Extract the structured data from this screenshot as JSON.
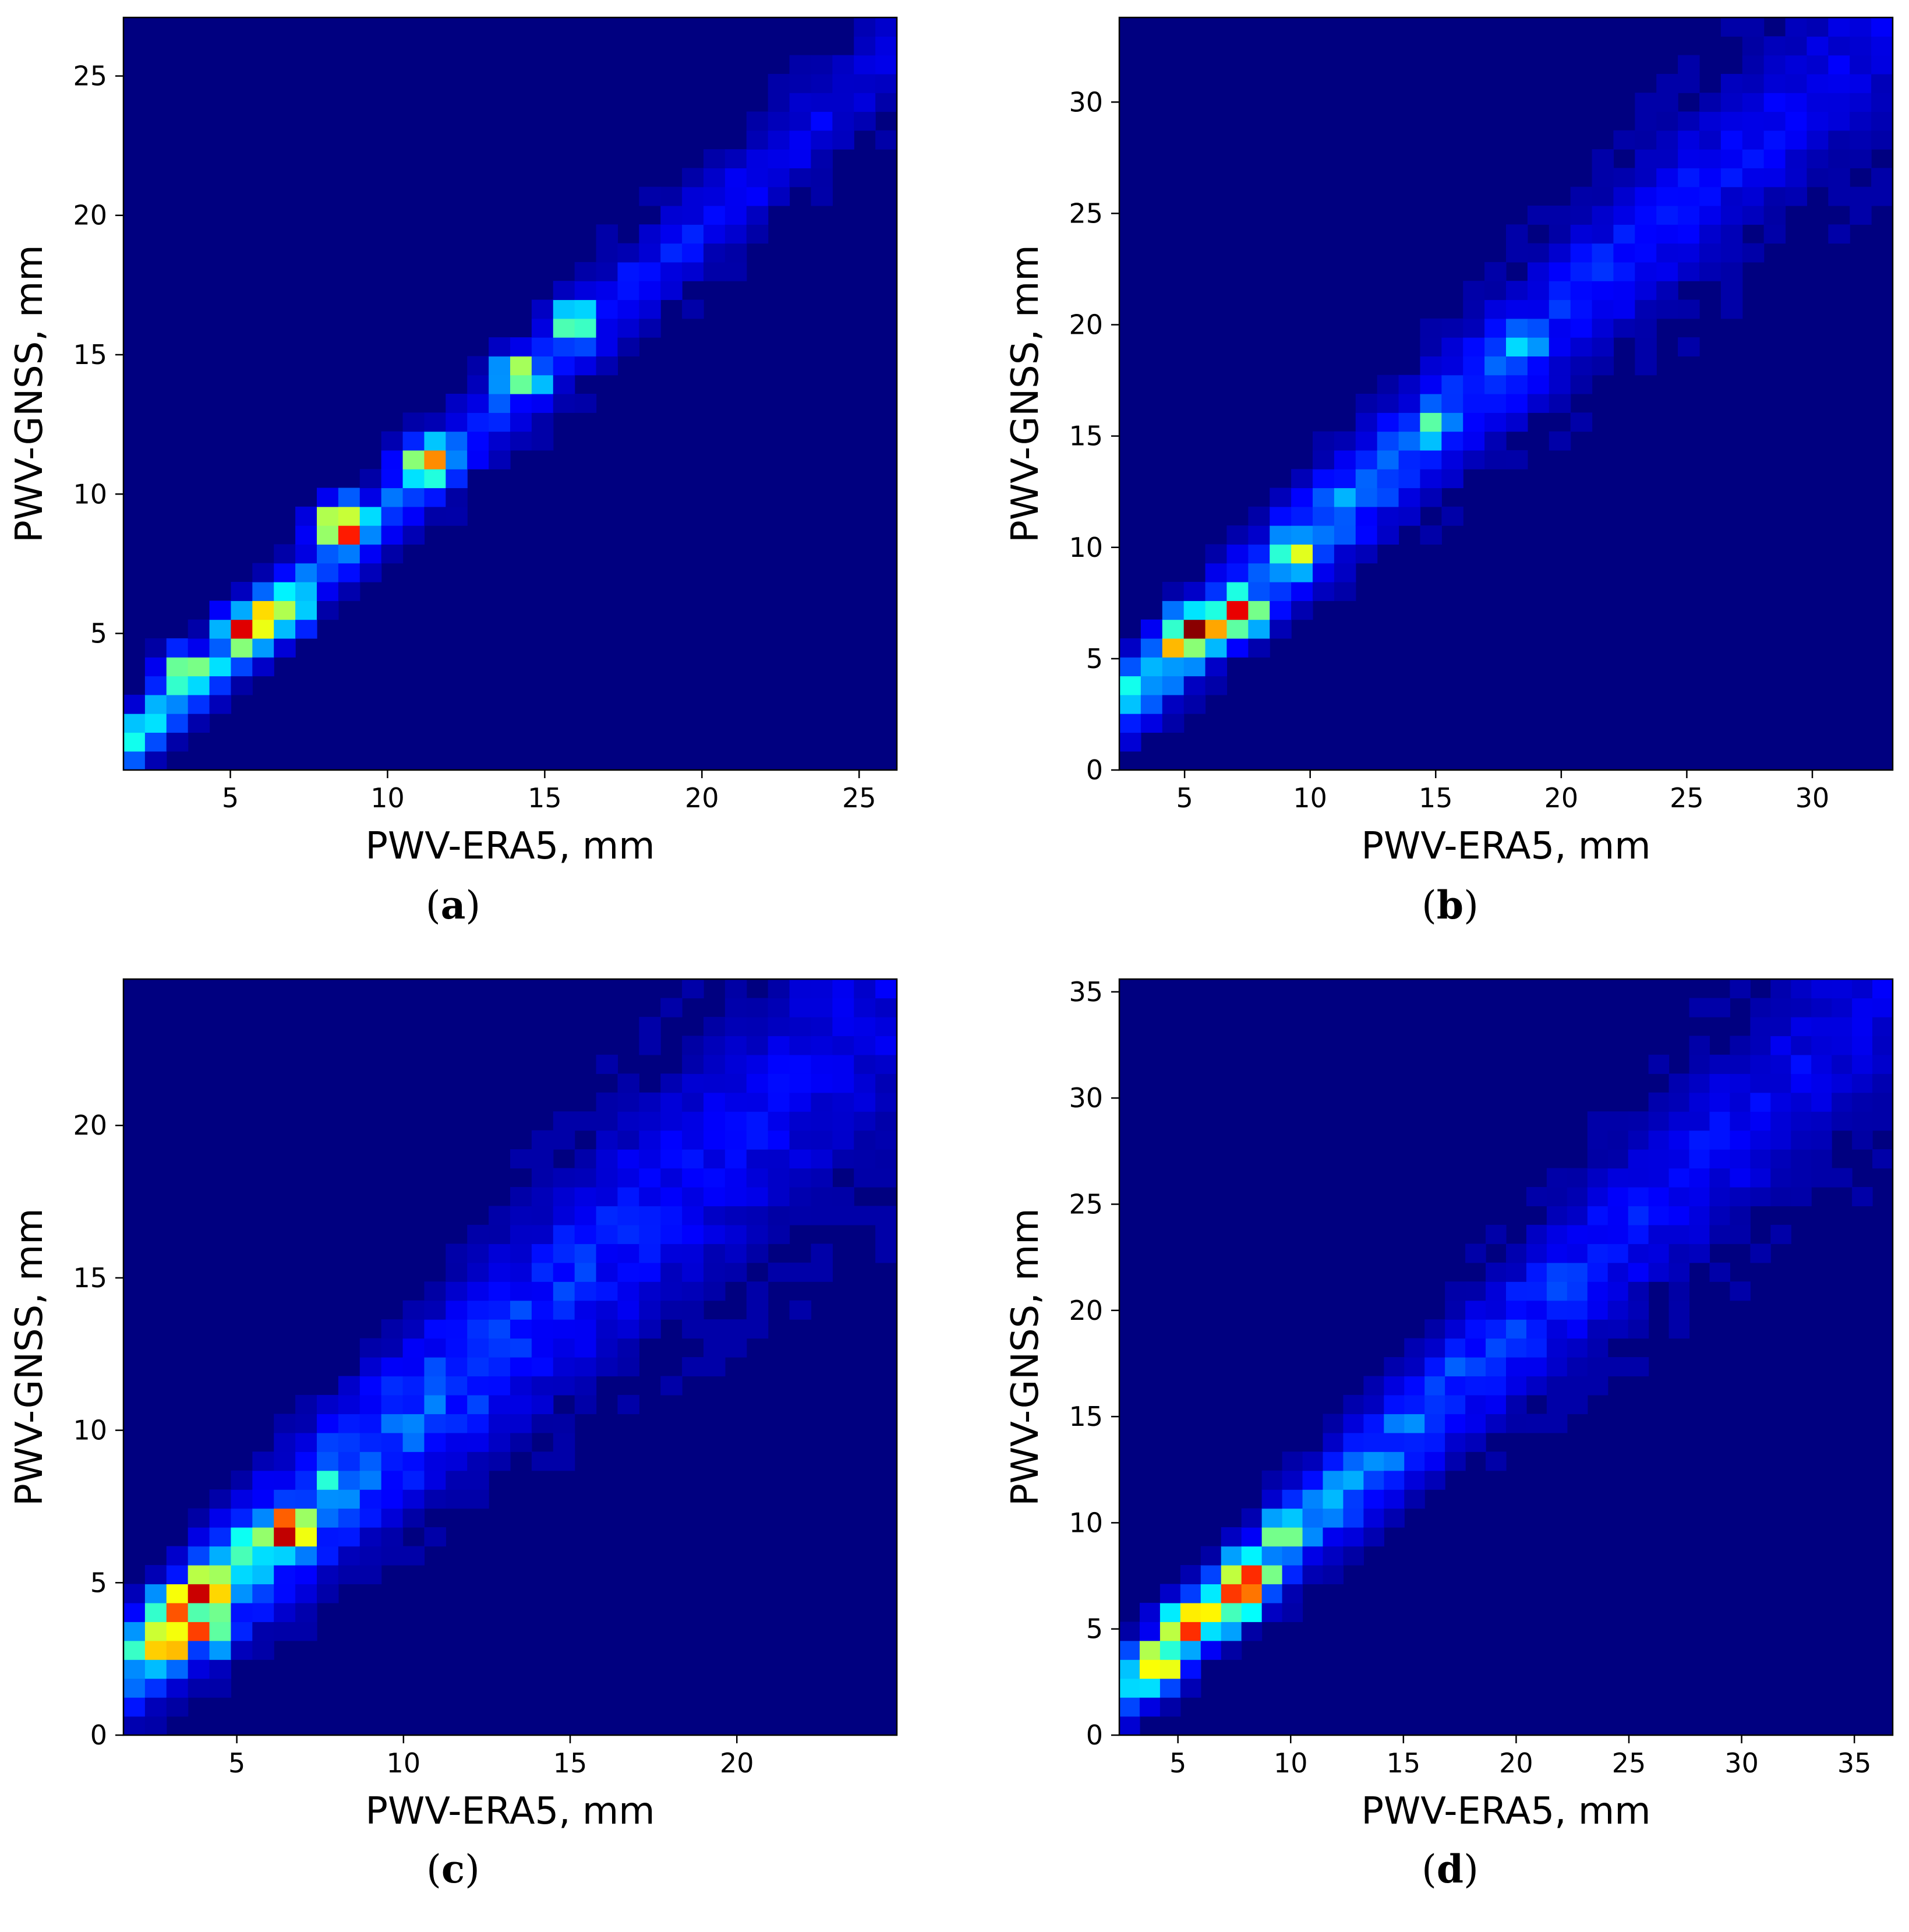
{
  "colormap": "jet",
  "chart_data": [
    {
      "type": "heatmap",
      "panel": "a",
      "caption": "a",
      "xlabel": "PWV-ERA5, mm",
      "ylabel": "PWV-GNSS, mm",
      "xlim": [
        1.6,
        26.2
      ],
      "ylim": [
        0.1,
        27.1
      ],
      "xticks": [
        5,
        10,
        15,
        20,
        25
      ],
      "yticks": [
        5,
        10,
        15,
        20,
        25
      ],
      "xbins": 36,
      "ybins": 40,
      "ridge": {
        "slope": 1.02,
        "intercept": -0.8,
        "spread": 0.7,
        "spread_growth": 0.03
      },
      "peaks": [
        {
          "x": 8.6,
          "y": 8.8,
          "v": 1.0
        },
        {
          "x": 6.5,
          "y": 5.8,
          "v": 0.82
        },
        {
          "x": 5.5,
          "y": 5.0,
          "v": 0.78
        },
        {
          "x": 11.3,
          "y": 11.1,
          "v": 0.68
        },
        {
          "x": 3.6,
          "y": 3.5,
          "v": 0.55
        },
        {
          "x": 14.2,
          "y": 14.2,
          "v": 0.55
        },
        {
          "x": 16.0,
          "y": 16.2,
          "v": 0.55
        }
      ]
    },
    {
      "type": "heatmap",
      "panel": "b",
      "caption": "b",
      "xlabel": "PWV-ERA5, mm",
      "ylabel": "PWV-GNSS, mm",
      "xlim": [
        2.4,
        33.2
      ],
      "ylim": [
        0.0,
        33.8
      ],
      "xticks": [
        5,
        10,
        15,
        20,
        25,
        30
      ],
      "yticks": [
        0,
        5,
        10,
        15,
        20,
        25,
        30
      ],
      "xbins": 36,
      "ybins": 40,
      "ridge": {
        "slope": 1.0,
        "intercept": 0.5,
        "spread": 1.1,
        "spread_growth": 0.07
      },
      "peaks": [
        {
          "x": 5.6,
          "y": 6.3,
          "v": 1.0
        },
        {
          "x": 4.9,
          "y": 5.6,
          "v": 0.75
        },
        {
          "x": 7.2,
          "y": 7.2,
          "v": 0.72
        },
        {
          "x": 9.5,
          "y": 9.8,
          "v": 0.5
        },
        {
          "x": 14.9,
          "y": 15.6,
          "v": 0.5
        },
        {
          "x": 18.5,
          "y": 19.0,
          "v": 0.38
        }
      ]
    },
    {
      "type": "heatmap",
      "panel": "c",
      "caption": "c",
      "xlabel": "PWV-ERA5, mm",
      "ylabel": "PWV-GNSS, mm",
      "xlim": [
        1.6,
        24.8
      ],
      "ylim": [
        0.0,
        24.8
      ],
      "xticks": [
        5,
        10,
        15,
        20
      ],
      "yticks": [
        0,
        5,
        10,
        15,
        20
      ],
      "xbins": 36,
      "ybins": 40,
      "ridge": {
        "slope": 0.95,
        "intercept": 0.6,
        "spread": 1.1,
        "spread_growth": 0.1
      },
      "peaks": [
        {
          "x": 6.6,
          "y": 6.6,
          "v": 1.0
        },
        {
          "x": 4.2,
          "y": 4.8,
          "v": 0.95
        },
        {
          "x": 4.2,
          "y": 3.6,
          "v": 0.8
        },
        {
          "x": 3.0,
          "y": 3.0,
          "v": 0.78
        },
        {
          "x": 5.5,
          "y": 6.3,
          "v": 0.72
        },
        {
          "x": 3.2,
          "y": 4.2,
          "v": 0.7
        },
        {
          "x": 7.9,
          "y": 8.0,
          "v": 0.42
        }
      ]
    },
    {
      "type": "heatmap",
      "panel": "d",
      "caption": "d",
      "xlabel": "PWV-ERA5, mm",
      "ylabel": "PWV-GNSS, mm",
      "xlim": [
        2.4,
        36.7
      ],
      "ylim": [
        0.0,
        35.6
      ],
      "xticks": [
        5,
        10,
        15,
        20,
        25,
        30,
        35
      ],
      "yticks": [
        0,
        5,
        10,
        15,
        20,
        25,
        30,
        35
      ],
      "xbins": 38,
      "ybins": 40,
      "ridge": {
        "slope": 0.97,
        "intercept": -0.4,
        "spread": 1.0,
        "spread_growth": 0.08
      },
      "peaks": [
        {
          "x": 7.5,
          "y": 6.7,
          "v": 1.0
        },
        {
          "x": 6.5,
          "y": 5.8,
          "v": 0.85
        },
        {
          "x": 8.3,
          "y": 7.7,
          "v": 0.8
        },
        {
          "x": 3.9,
          "y": 3.2,
          "v": 0.78
        },
        {
          "x": 5.4,
          "y": 5.2,
          "v": 0.75
        },
        {
          "x": 9.8,
          "y": 9.5,
          "v": 0.6
        },
        {
          "x": 12.4,
          "y": 12.0,
          "v": 0.42
        }
      ]
    }
  ]
}
